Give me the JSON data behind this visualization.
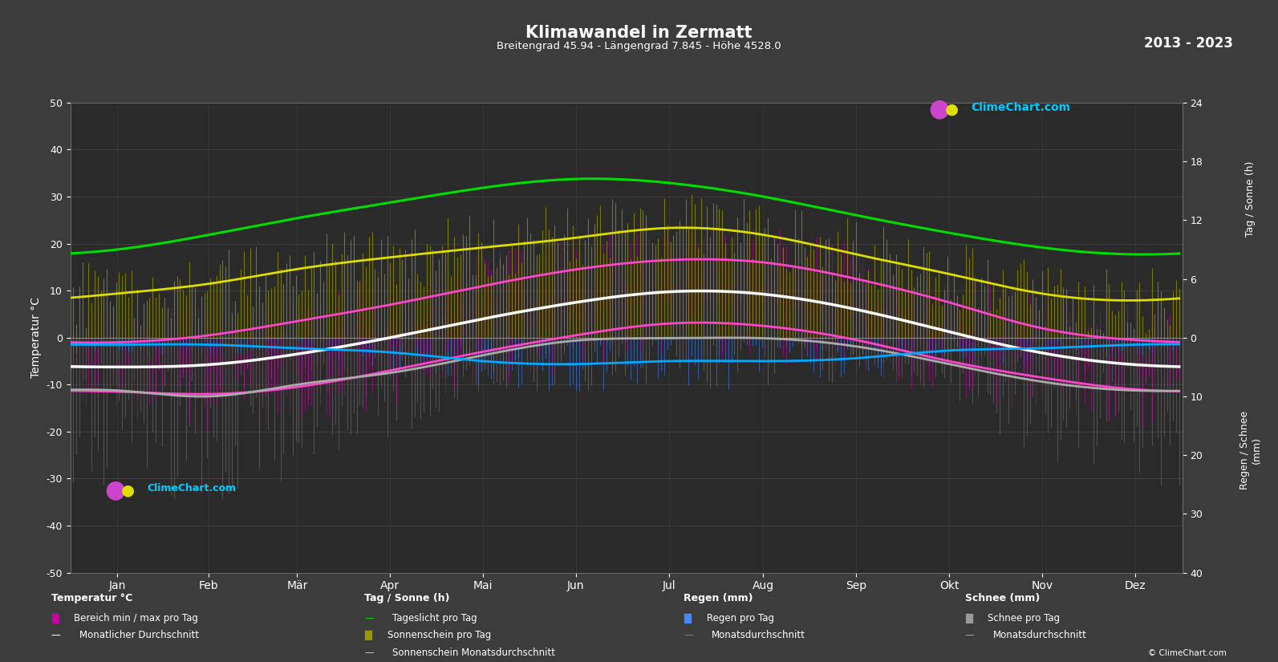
{
  "title": "Klimawandel in Zermatt",
  "subtitle": "Breitengrad 45.94 - Längengrad 7.845 - Höhe 4528.0",
  "year_range": "2013 - 2023",
  "bg_color": "#3c3c3c",
  "plot_bg_color": "#2a2a2a",
  "temp_ylim": [
    -50,
    50
  ],
  "right_ylim": [
    -40,
    24
  ],
  "months": [
    "Jan",
    "Feb",
    "Mär",
    "Apr",
    "Mai",
    "Jun",
    "Jul",
    "Aug",
    "Sep",
    "Okt",
    "Nov",
    "Dez"
  ],
  "month_centers": [
    15.5,
    45.5,
    74.5,
    105.0,
    135.5,
    166.0,
    196.5,
    227.5,
    258.0,
    288.5,
    319.0,
    349.5
  ],
  "daylight_hours": [
    9.0,
    10.5,
    12.2,
    13.8,
    15.3,
    16.2,
    15.8,
    14.4,
    12.5,
    10.7,
    9.2,
    8.5
  ],
  "sunshine_hours_avg": [
    4.5,
    5.5,
    7.0,
    8.2,
    9.2,
    10.2,
    11.2,
    10.5,
    8.5,
    6.5,
    4.5,
    3.8
  ],
  "sunshine_hours_daily_noise": 3.5,
  "temp_max_avg": [
    -1.0,
    0.5,
    3.5,
    7.0,
    11.0,
    14.5,
    16.5,
    16.0,
    12.5,
    7.5,
    2.0,
    -0.5
  ],
  "temp_min_avg": [
    -11.5,
    -12.0,
    -10.5,
    -7.0,
    -3.0,
    0.5,
    3.0,
    2.5,
    -0.5,
    -5.0,
    -8.5,
    -11.0
  ],
  "temp_max_daily_noise": 8.0,
  "temp_min_daily_noise": 8.0,
  "rain_daily_max": [
    2.5,
    2.5,
    3.5,
    4.5,
    7.0,
    8.0,
    7.5,
    7.5,
    6.5,
    4.5,
    3.5,
    2.5
  ],
  "rain_monthly_avg": [
    1.2,
    1.2,
    1.8,
    2.5,
    4.0,
    4.5,
    4.0,
    4.0,
    3.5,
    2.2,
    1.8,
    1.2
  ],
  "snow_daily_max": [
    20.0,
    22.0,
    18.0,
    14.0,
    7.0,
    1.5,
    0.3,
    0.3,
    3.0,
    9.0,
    16.0,
    20.0
  ],
  "snow_monthly_avg": [
    9.0,
    10.0,
    8.0,
    6.0,
    3.0,
    0.5,
    0.1,
    0.1,
    1.5,
    4.5,
    7.5,
    9.0
  ],
  "colors": {
    "green_line": "#00dd00",
    "yellow_line": "#dddd00",
    "olive_dark": "#6b6b00",
    "olive_light": "#9a9a00",
    "white_line": "#ffffff",
    "magenta_line": "#ff44cc",
    "magenta_bar": "#cc00aa",
    "blue_line": "#00aaff",
    "blue_bar": "#4488ff",
    "gray_bar": "#999999",
    "gray_line": "#aaaaaa",
    "text_color": "#ffffff",
    "grid_color": "#555555",
    "zero_line": "#888888"
  }
}
